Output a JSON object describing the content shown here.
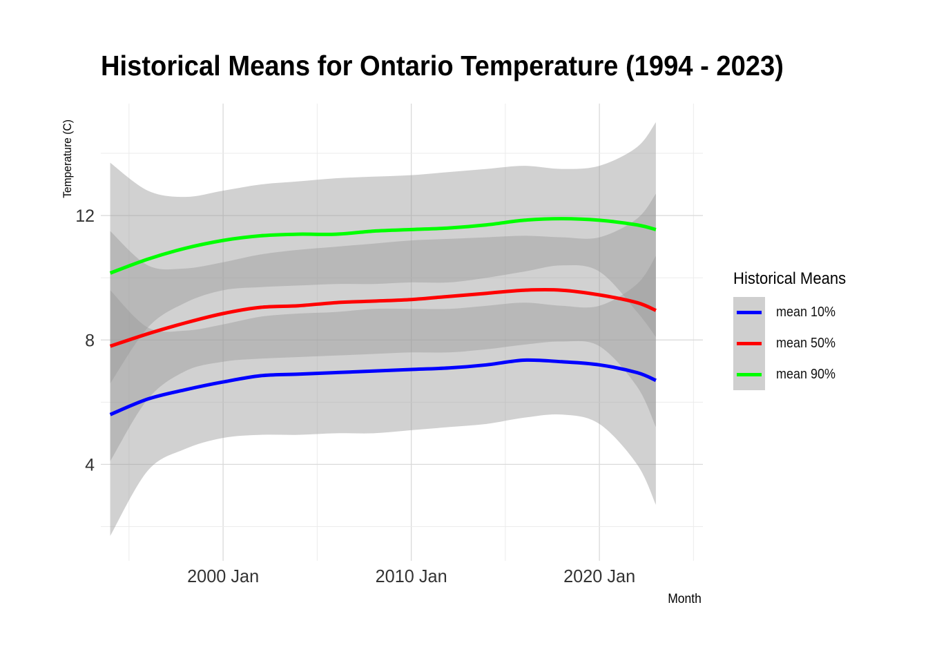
{
  "chart_data": {
    "type": "line",
    "title": "Historical Means for Ontario Temperature (1994 - 2023)",
    "xlabel": "Month",
    "ylabel": "Temperature (C)",
    "xlim": [
      1993.5,
      2025.5
    ],
    "ylim": [
      0.9,
      15.6
    ],
    "x_ticks": [
      2000,
      2010,
      2020
    ],
    "x_tick_labels": [
      "2000 Jan",
      "2010 Jan",
      "2020 Jan"
    ],
    "y_ticks": [
      4,
      8,
      12
    ],
    "y_tick_labels": [
      "4",
      "8",
      "12"
    ],
    "grid": true,
    "legend": {
      "title": "Historical Means",
      "placement": "right"
    },
    "x": [
      1994,
      1996,
      1998,
      2000,
      2002,
      2004,
      2006,
      2008,
      2010,
      2012,
      2014,
      2016,
      2018,
      2020,
      2022,
      2023
    ],
    "series": [
      {
        "name": "mean 10%",
        "color": "#0000ff",
        "values": [
          5.6,
          6.1,
          6.4,
          6.65,
          6.85,
          6.9,
          6.95,
          7.0,
          7.05,
          7.1,
          7.2,
          7.35,
          7.3,
          7.2,
          6.95,
          6.7
        ],
        "ci_lower": [
          1.7,
          3.8,
          4.5,
          4.85,
          4.95,
          4.95,
          5.0,
          5.0,
          5.1,
          5.2,
          5.3,
          5.5,
          5.6,
          5.3,
          4.0,
          2.7
        ],
        "ci_upper": [
          9.6,
          8.4,
          8.3,
          8.5,
          8.75,
          8.85,
          8.9,
          9.0,
          9.0,
          9.0,
          9.1,
          9.2,
          9.1,
          9.1,
          9.8,
          10.7
        ]
      },
      {
        "name": "mean 50%",
        "color": "#ff0000",
        "values": [
          7.8,
          8.2,
          8.55,
          8.85,
          9.05,
          9.1,
          9.2,
          9.25,
          9.3,
          9.4,
          9.5,
          9.6,
          9.6,
          9.45,
          9.2,
          8.95
        ],
        "ci_lower": [
          4.1,
          6.1,
          7.0,
          7.3,
          7.4,
          7.45,
          7.5,
          7.55,
          7.6,
          7.6,
          7.7,
          7.85,
          7.95,
          7.8,
          6.5,
          5.2
        ],
        "ci_upper": [
          11.5,
          10.4,
          10.3,
          10.5,
          10.75,
          10.9,
          11.0,
          11.1,
          11.2,
          11.25,
          11.3,
          11.35,
          11.3,
          11.3,
          11.9,
          12.7
        ]
      },
      {
        "name": "mean 90%",
        "color": "#00ff00",
        "values": [
          10.15,
          10.6,
          10.95,
          11.2,
          11.35,
          11.4,
          11.4,
          11.5,
          11.55,
          11.6,
          11.7,
          11.85,
          11.9,
          11.85,
          11.7,
          11.55
        ],
        "ci_lower": [
          6.6,
          8.4,
          9.2,
          9.6,
          9.7,
          9.75,
          9.8,
          9.8,
          9.85,
          9.85,
          10.0,
          10.2,
          10.4,
          10.2,
          8.9,
          8.1
        ],
        "ci_upper": [
          13.7,
          12.8,
          12.6,
          12.8,
          13.0,
          13.1,
          13.2,
          13.25,
          13.3,
          13.4,
          13.5,
          13.6,
          13.5,
          13.6,
          14.2,
          15.0
        ]
      }
    ]
  }
}
